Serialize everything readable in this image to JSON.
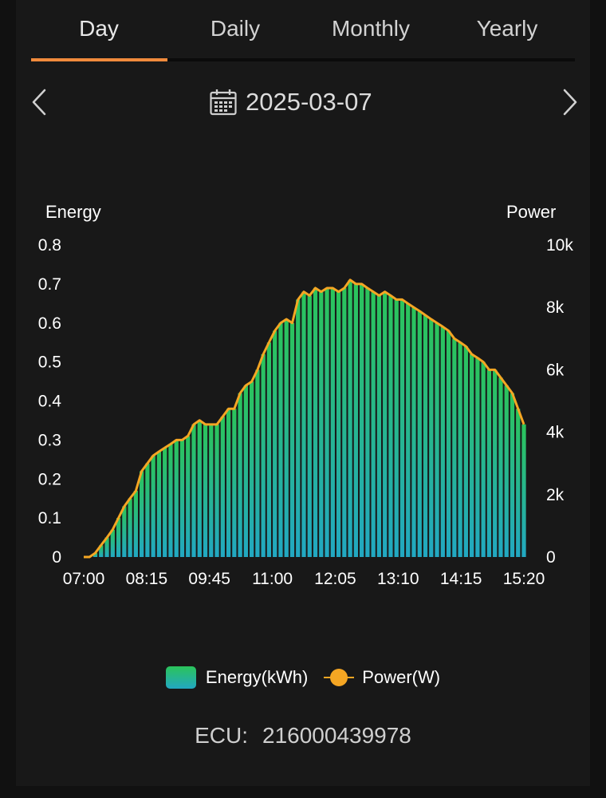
{
  "tabs": [
    {
      "label": "Day",
      "active": true
    },
    {
      "label": "Daily",
      "active": false
    },
    {
      "label": "Monthly",
      "active": false
    },
    {
      "label": "Yearly",
      "active": false
    }
  ],
  "date": "2025-03-07",
  "icons": {
    "prev": "chevron-left-icon",
    "next": "chevron-right-icon",
    "calendar": "calendar-icon"
  },
  "colors": {
    "accent": "#f08a3c",
    "energy_top": "#2bc45a",
    "energy_bottom": "#22a8c2",
    "power_line": "#f5a623"
  },
  "chart_data": {
    "type": "bar",
    "left_axis_title": "Energy",
    "right_axis_title": "Power",
    "x_tick_labels": [
      "07:00",
      "08:15",
      "09:45",
      "11:00",
      "12:05",
      "13:10",
      "14:15",
      "15:20"
    ],
    "left_ticks": [
      "0",
      "0.1",
      "0.2",
      "0.3",
      "0.4",
      "0.5",
      "0.6",
      "0.7",
      "0.8"
    ],
    "right_ticks": [
      "0",
      "2k",
      "4k",
      "6k",
      "8k",
      "10k"
    ],
    "ylim_left": [
      0,
      0.8
    ],
    "ylim_right": [
      0,
      10000
    ],
    "grid": false,
    "legend_position": "bottom-center",
    "series": [
      {
        "name": "Energy(kWh)",
        "type": "bar",
        "axis": "left",
        "values": [
          0,
          0,
          0.01,
          0.03,
          0.05,
          0.07,
          0.1,
          0.13,
          0.15,
          0.17,
          0.22,
          0.24,
          0.26,
          0.27,
          0.28,
          0.29,
          0.3,
          0.3,
          0.31,
          0.34,
          0.35,
          0.34,
          0.34,
          0.34,
          0.36,
          0.38,
          0.38,
          0.42,
          0.44,
          0.45,
          0.48,
          0.52,
          0.55,
          0.58,
          0.6,
          0.61,
          0.6,
          0.66,
          0.68,
          0.67,
          0.69,
          0.68,
          0.69,
          0.69,
          0.68,
          0.69,
          0.71,
          0.7,
          0.7,
          0.69,
          0.68,
          0.67,
          0.68,
          0.67,
          0.66,
          0.66,
          0.65,
          0.64,
          0.63,
          0.62,
          0.61,
          0.6,
          0.59,
          0.58,
          0.56,
          0.55,
          0.54,
          0.52,
          0.51,
          0.5,
          0.48,
          0.48,
          0.46,
          0.44,
          0.42,
          0.38,
          0.34
        ]
      },
      {
        "name": "Power(W)",
        "type": "line",
        "axis": "right",
        "values": [
          0,
          0,
          130,
          380,
          620,
          880,
          1250,
          1620,
          1880,
          2120,
          2750,
          3000,
          3250,
          3380,
          3500,
          3620,
          3750,
          3750,
          3880,
          4250,
          4380,
          4250,
          4250,
          4250,
          4500,
          4750,
          4750,
          5250,
          5500,
          5620,
          6000,
          6500,
          6880,
          7250,
          7500,
          7620,
          7500,
          8250,
          8500,
          8380,
          8620,
          8500,
          8620,
          8620,
          8500,
          8620,
          8880,
          8750,
          8750,
          8620,
          8500,
          8380,
          8500,
          8380,
          8250,
          8250,
          8120,
          8000,
          7880,
          7750,
          7620,
          7500,
          7380,
          7250,
          7000,
          6880,
          6750,
          6500,
          6380,
          6250,
          6000,
          6000,
          5750,
          5500,
          5250,
          4750,
          4250
        ]
      }
    ]
  },
  "ecu": {
    "label": "ECU:",
    "value": "216000439978"
  }
}
